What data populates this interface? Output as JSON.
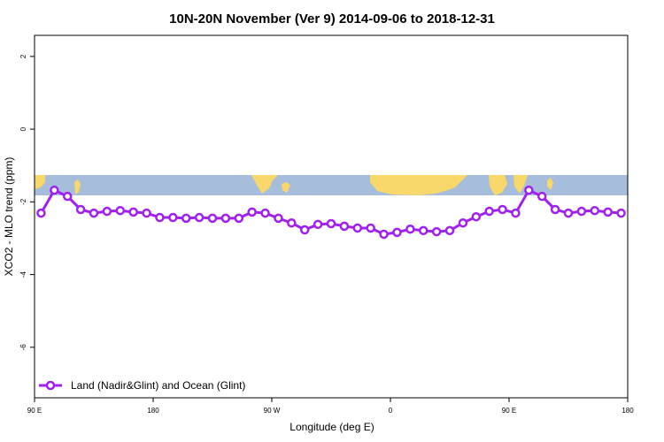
{
  "chart_data": {
    "type": "line",
    "title": "10N-20N November (Ver 9)   2014-09-06 to 2018-12-31",
    "x_label": "Longitude (deg E)",
    "y_label": "XCO2 - MLO trend (ppm)",
    "x": [
      95,
      105,
      115,
      125,
      135,
      145,
      155,
      165,
      175,
      185,
      195,
      205,
      215,
      225,
      235,
      245,
      255,
      265,
      275,
      285,
      295,
      305,
      315,
      325,
      335,
      345,
      355,
      365,
      375,
      385,
      395,
      405,
      415,
      425,
      435,
      445,
      455,
      465,
      475,
      485,
      495,
      505,
      515,
      525,
      535
    ],
    "series": [
      {
        "name": "Land (Nadir&Glint) and Ocean (Glint)",
        "color": "#a020f0",
        "values": [
          -2.31,
          -1.68,
          -1.85,
          -2.21,
          -2.31,
          -2.26,
          -2.24,
          -2.28,
          -2.31,
          -2.43,
          -2.43,
          -2.45,
          -2.43,
          -2.45,
          -2.45,
          -2.45,
          -2.28,
          -2.31,
          -2.45,
          -2.58,
          -2.77,
          -2.62,
          -2.6,
          -2.67,
          -2.72,
          -2.72,
          -2.89,
          -2.84,
          -2.75,
          -2.79,
          -2.82,
          -2.79,
          -2.58,
          -2.41,
          -2.26,
          -2.21,
          -2.31,
          -1.68,
          -1.85,
          -2.21,
          -2.31,
          -2.26,
          -2.24,
          -2.28,
          -2.31
        ]
      }
    ],
    "xlim": [
      90,
      540
    ],
    "xticks": [
      {
        "value": 90,
        "label": "90 E"
      },
      {
        "value": 180,
        "label": "180"
      },
      {
        "value": 270,
        "label": "90 W"
      },
      {
        "value": 360,
        "label": "0"
      },
      {
        "value": 450,
        "label": "90 E"
      },
      {
        "value": 540,
        "label": "180"
      }
    ],
    "ylim": [
      -7.39,
      2.58
    ],
    "yticks": [
      2,
      0,
      -2,
      -4,
      -6
    ],
    "legend": "bottomleft"
  }
}
